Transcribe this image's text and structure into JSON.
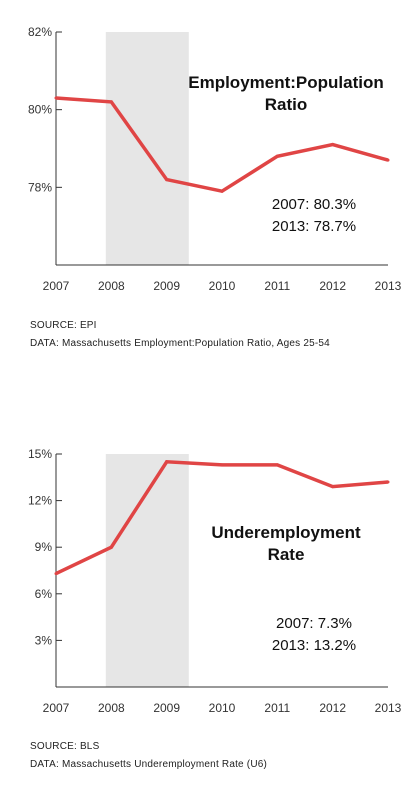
{
  "charts": [
    {
      "id": "chart1",
      "type": "line",
      "title_lines": [
        "Employment:Population",
        "Ratio"
      ],
      "x": [
        2007,
        2008,
        2009,
        2010,
        2011,
        2012,
        2013
      ],
      "x_tick_labels": [
        "2007",
        "2008",
        "2009",
        "2010",
        "2011",
        "2012",
        "2013"
      ],
      "y_tick_values": [
        78,
        80,
        82
      ],
      "y_tick_labels": [
        "78%",
        "80%",
        "82%"
      ],
      "ylim": [
        76,
        82
      ],
      "shaded_range": [
        2007.9,
        2009.4
      ],
      "series": [
        {
          "x": [
            2007,
            2008,
            2009,
            2010,
            2011,
            2012,
            2013
          ],
          "values": [
            80.3,
            80.2,
            78.2,
            77.9,
            78.8,
            79.1,
            78.7
          ]
        }
      ],
      "annotations": [
        "2007: 80.3%",
        "2013: 78.7%"
      ],
      "source": "SOURCE: EPI",
      "data_note": "DATA: Massachusetts Employment:Population Ratio, Ages 25-54",
      "line_color": "#e04545",
      "shade_color": "#e6e6e6"
    },
    {
      "id": "chart2",
      "type": "line",
      "title_lines": [
        "Underemployment",
        "Rate"
      ],
      "x": [
        2007,
        2008,
        2009,
        2010,
        2011,
        2012,
        2013
      ],
      "x_tick_labels": [
        "2007",
        "2008",
        "2009",
        "2010",
        "2011",
        "2012",
        "2013"
      ],
      "y_tick_values": [
        3,
        6,
        9,
        12,
        15
      ],
      "y_tick_labels": [
        "3%",
        "6%",
        "9%",
        "12%",
        "15%"
      ],
      "ylim": [
        0,
        15
      ],
      "shaded_range": [
        2007.9,
        2009.4
      ],
      "series": [
        {
          "x": [
            2007,
            2008,
            2009,
            2010,
            2011,
            2012,
            2013
          ],
          "values": [
            7.3,
            9.0,
            14.5,
            14.3,
            14.3,
            12.9,
            13.2
          ]
        }
      ],
      "annotations": [
        "2007: 7.3%",
        "2013: 13.2%"
      ],
      "source": "SOURCE: BLS",
      "data_note": "DATA: Massachusetts Underemployment Rate (U6)",
      "line_color": "#e04545",
      "shade_color": "#e6e6e6"
    }
  ]
}
